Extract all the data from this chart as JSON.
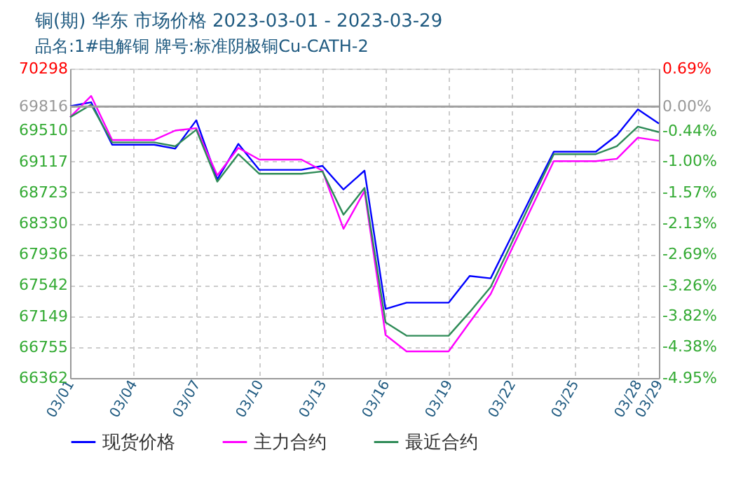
{
  "chart_data": {
    "type": "line",
    "title": "铜(期) 华东 市场价格 2023-03-01 - 2023-03-29",
    "subtitle": "品名:1#电解铜 牌号:标准阴极铜Cu-CATH-2",
    "x": [
      "2023-03-01",
      "2023-03-02",
      "2023-03-03",
      "2023-03-04",
      "2023-03-05",
      "2023-03-06",
      "2023-03-07",
      "2023-03-08",
      "2023-03-09",
      "2023-03-10",
      "2023-03-11",
      "2023-03-12",
      "2023-03-13",
      "2023-03-14",
      "2023-03-15",
      "2023-03-16",
      "2023-03-17",
      "2023-03-18",
      "2023-03-19",
      "2023-03-20",
      "2023-03-21",
      "2023-03-22",
      "2023-03-23",
      "2023-03-24",
      "2023-03-25",
      "2023-03-26",
      "2023-03-27",
      "2023-03-28",
      "2023-03-29"
    ],
    "series": [
      {
        "name": "现货价格",
        "color": "#0000ff",
        "values": [
          69820,
          69870,
          69330,
          69330,
          69330,
          69280,
          69640,
          68890,
          69340,
          69010,
          69010,
          69010,
          69060,
          68760,
          69000,
          67240,
          67320,
          67320,
          67320,
          67660,
          67630,
          68170,
          68710,
          69240,
          69240,
          69240,
          69450,
          69780,
          69600
        ]
      },
      {
        "name": "主力合约",
        "color": "#ff00ff",
        "values": [
          69680,
          69950,
          69390,
          69390,
          69390,
          69510,
          69540,
          68940,
          69290,
          69140,
          69140,
          69140,
          69000,
          68260,
          68740,
          66910,
          66700,
          66700,
          66700,
          67070,
          67430,
          68000,
          68560,
          69120,
          69120,
          69120,
          69150,
          69420,
          69380
        ]
      },
      {
        "name": "最近合约",
        "color": "#2e8b57",
        "values": [
          69680,
          69840,
          69360,
          69360,
          69360,
          69310,
          69520,
          68860,
          69210,
          68960,
          68960,
          68960,
          68990,
          68440,
          68780,
          67070,
          66900,
          66900,
          66900,
          67200,
          67520,
          68080,
          68650,
          69210,
          69210,
          69210,
          69310,
          69560,
          69490
        ]
      }
    ],
    "xlim": [
      "2023-03-01",
      "2023-03-29"
    ],
    "xticks": [
      {
        "value": "2023-03-01",
        "label": "03/01"
      },
      {
        "value": "2023-03-04",
        "label": "03/04"
      },
      {
        "value": "2023-03-07",
        "label": "03/07"
      },
      {
        "value": "2023-03-10",
        "label": "03/10"
      },
      {
        "value": "2023-03-13",
        "label": "03/13"
      },
      {
        "value": "2023-03-16",
        "label": "03/16"
      },
      {
        "value": "2023-03-19",
        "label": "03/19"
      },
      {
        "value": "2023-03-22",
        "label": "03/22"
      },
      {
        "value": "2023-03-25",
        "label": "03/25"
      },
      {
        "value": "2023-03-28",
        "label": "03/28"
      },
      {
        "value": "2023-03-29",
        "label": "03/29"
      }
    ],
    "ylim": [
      66362,
      70298
    ],
    "yticks": [
      66362,
      66755,
      67149,
      67542,
      67936,
      68330,
      68723,
      69117,
      69510,
      69816,
      70298
    ],
    "y2lim": [
      -4.95,
      0.69
    ],
    "y2ticks": [
      {
        "value": -4.95,
        "label": "-4.95%"
      },
      {
        "value": -4.38,
        "label": "-4.38%"
      },
      {
        "value": -3.82,
        "label": "-3.82%"
      },
      {
        "value": -3.26,
        "label": "-3.26%"
      },
      {
        "value": -2.69,
        "label": "-2.69%"
      },
      {
        "value": -2.13,
        "label": "-2.13%"
      },
      {
        "value": -1.57,
        "label": "-1.57%"
      },
      {
        "value": -1.0,
        "label": "-1.00%"
      },
      {
        "value": -0.44,
        "label": "-0.44%"
      },
      {
        "value": 0.0,
        "label": "0.00%"
      },
      {
        "value": 0.69,
        "label": "0.69%"
      }
    ],
    "ref_lines": [
      {
        "axis": "y",
        "value": 69816,
        "color": "#a0a0a0"
      }
    ],
    "grid": true,
    "legend": "bottom",
    "marker": "none",
    "line_style": "solid"
  }
}
